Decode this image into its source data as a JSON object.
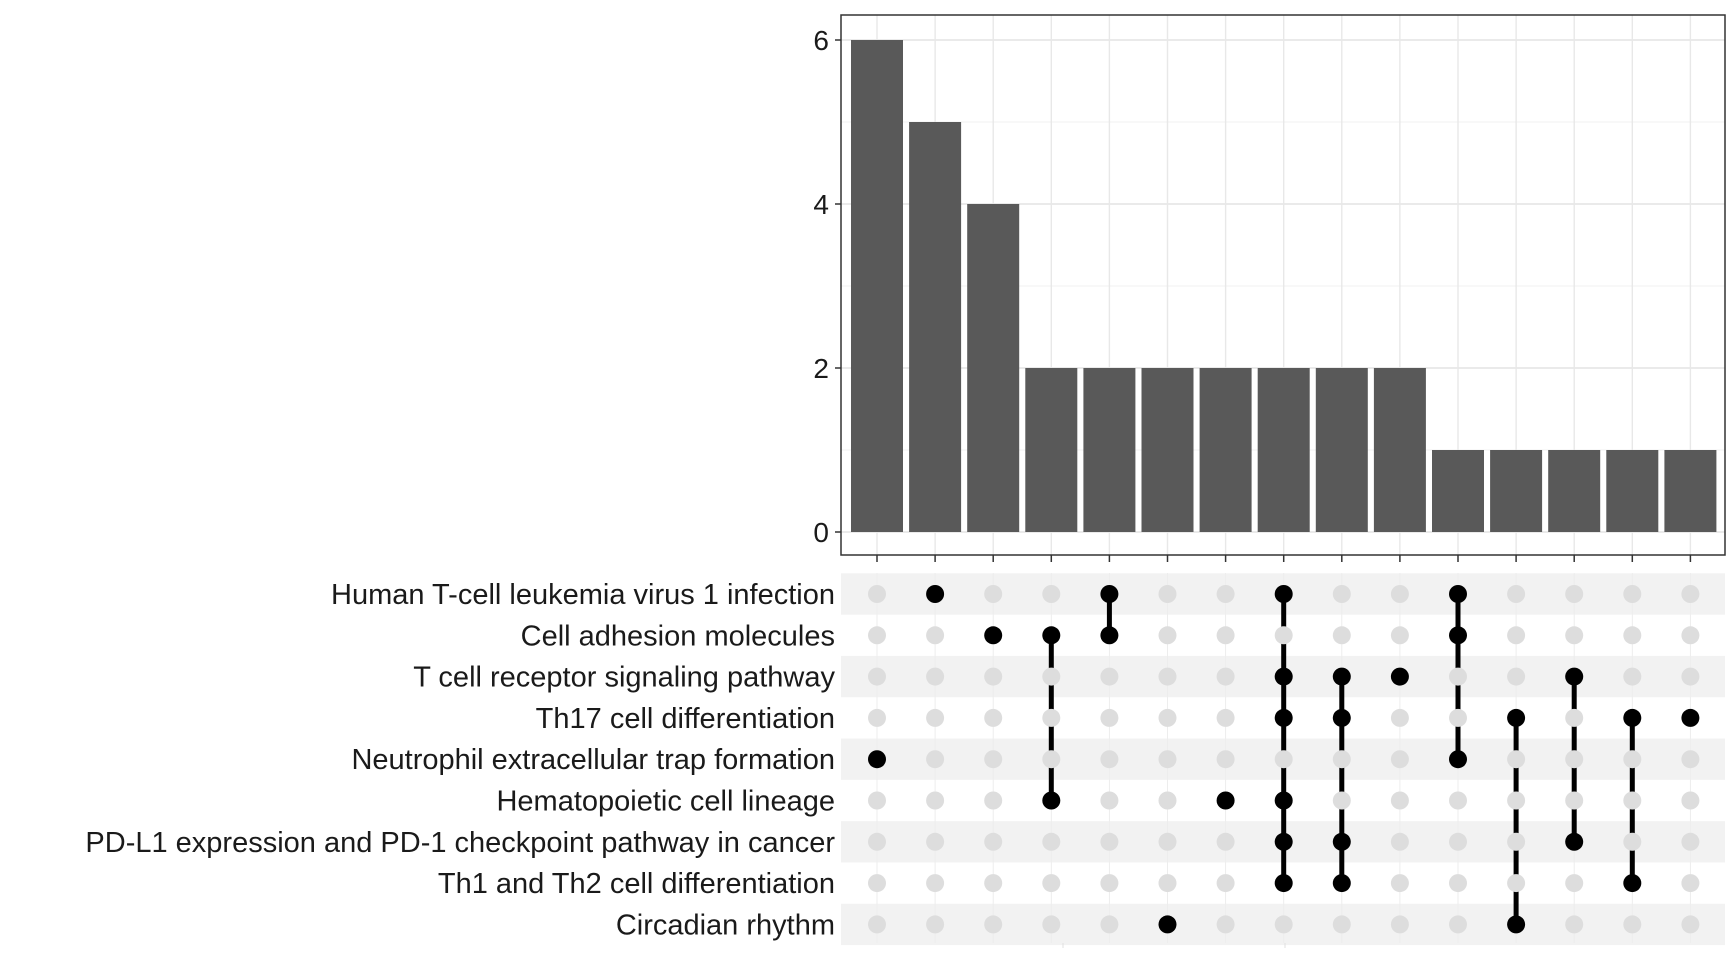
{
  "chart_data": {
    "type": "bar",
    "title": "",
    "xlabel": "",
    "ylabel": "",
    "ylim": [
      0,
      6.3
    ],
    "y_ticks": [
      0,
      2,
      4,
      6
    ],
    "grid": true,
    "bar_color": "#595959",
    "dot_active_color": "#000000",
    "dot_inactive_color": "#dddddd",
    "stripe_color": "#f2f2f2",
    "sets": [
      "Human T-cell leukemia virus 1 infection",
      "Cell adhesion molecules",
      "T cell receptor signaling pathway",
      "Th17 cell differentiation",
      "Neutrophil extracellular trap formation",
      "Hematopoietic cell lineage",
      "PD-L1 expression and PD-1 checkpoint pathway in cancer",
      "Th1 and Th2 cell differentiation",
      "Circadian rhythm"
    ],
    "values": [
      6,
      5,
      4,
      2,
      2,
      2,
      2,
      2,
      2,
      2,
      1,
      1,
      1,
      1,
      1
    ],
    "intersections": [
      [
        "Neutrophil extracellular trap formation"
      ],
      [
        "Human T-cell leukemia virus 1 infection"
      ],
      [
        "Cell adhesion molecules"
      ],
      [
        "Cell adhesion molecules",
        "Hematopoietic cell lineage"
      ],
      [
        "Human T-cell leukemia virus 1 infection",
        "Cell adhesion molecules"
      ],
      [
        "Circadian rhythm"
      ],
      [
        "Hematopoietic cell lineage"
      ],
      [
        "Human T-cell leukemia virus 1 infection",
        "T cell receptor signaling pathway",
        "Th17 cell differentiation",
        "Hematopoietic cell lineage",
        "PD-L1 expression and PD-1 checkpoint pathway in cancer",
        "Th1 and Th2 cell differentiation"
      ],
      [
        "T cell receptor signaling pathway",
        "Th17 cell differentiation",
        "PD-L1 expression and PD-1 checkpoint pathway in cancer",
        "Th1 and Th2 cell differentiation"
      ],
      [
        "T cell receptor signaling pathway"
      ],
      [
        "Human T-cell leukemia virus 1 infection",
        "Cell adhesion molecules",
        "Neutrophil extracellular trap formation"
      ],
      [
        "Th17 cell differentiation",
        "Circadian rhythm"
      ],
      [
        "T cell receptor signaling pathway",
        "PD-L1 expression and PD-1 checkpoint pathway in cancer"
      ],
      [
        "Th17 cell differentiation",
        "Th1 and Th2 cell differentiation"
      ],
      [
        "Th17 cell differentiation"
      ]
    ]
  }
}
